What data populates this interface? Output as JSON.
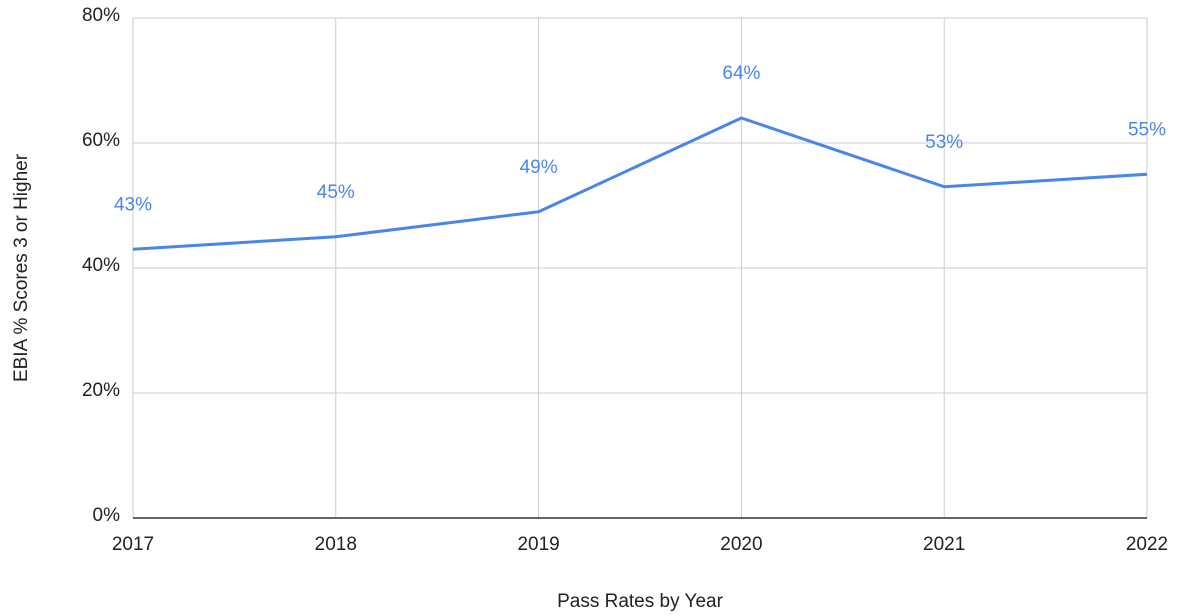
{
  "chart_data": {
    "type": "line",
    "x_label": "Pass Rates by Year",
    "y_label": "EBIA % Scores 3 or Higher",
    "categories": [
      "2017",
      "2018",
      "2019",
      "2020",
      "2021",
      "2022"
    ],
    "series": [
      {
        "name": "EBIA % Scores 3 or Higher",
        "color": "#4a86e8",
        "values": [
          43,
          45,
          49,
          64,
          53,
          55
        ],
        "value_labels": [
          "43%",
          "45%",
          "49%",
          "64%",
          "53%",
          "55%"
        ]
      }
    ],
    "ylim": [
      0,
      80
    ],
    "yticks": [
      {
        "value": 0,
        "label": "0%"
      },
      {
        "value": 20,
        "label": "20%"
      },
      {
        "value": 40,
        "label": "40%"
      },
      {
        "value": 60,
        "label": "60%"
      },
      {
        "value": 80,
        "label": "80%"
      }
    ],
    "grid": true
  }
}
